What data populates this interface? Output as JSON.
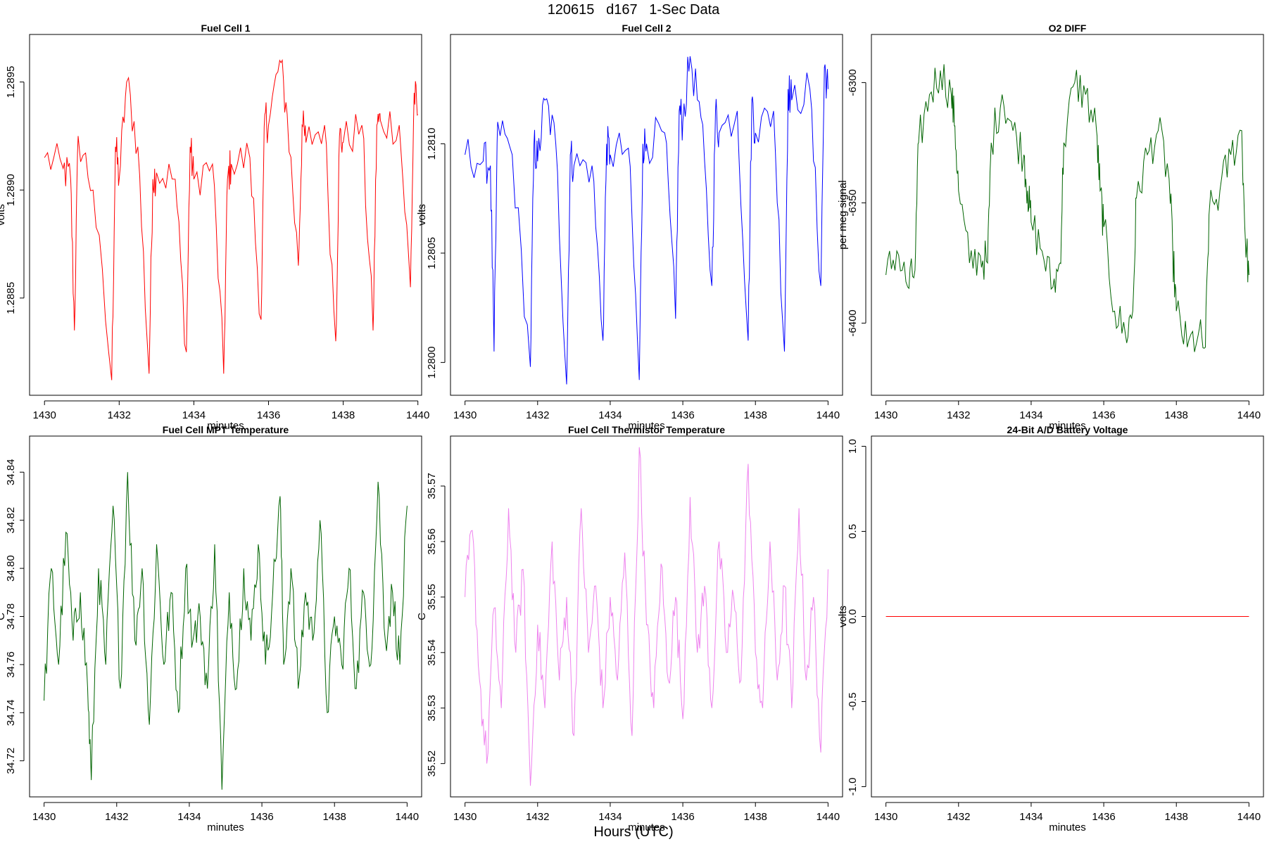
{
  "header": {
    "title": "120615   d167   1-Sec Data"
  },
  "footer": {
    "caption": "Hours (UTC)"
  },
  "chart_data": [
    {
      "type": "line",
      "title": "Fuel Cell 1",
      "xlabel": "minutes",
      "ylabel": "volts",
      "color": "#ff0000",
      "xlim": [
        1429.6,
        1440.1
      ],
      "ylim": [
        1.28805,
        1.28972
      ],
      "xticks": [
        1430,
        1432,
        1434,
        1436,
        1438,
        1440
      ],
      "yticks": [
        1.2885,
        1.289,
        1.2895
      ],
      "ytick_labels": [
        "1.2885",
        "1.2890",
        "1.2895"
      ],
      "x": [
        1430.0,
        1430.5,
        1430.7,
        1430.8,
        1430.9,
        1431.3,
        1431.8,
        1431.9,
        1432.0,
        1432.2,
        1432.5,
        1432.8,
        1432.9,
        1433.0,
        1433.5,
        1433.8,
        1433.9,
        1434.0,
        1434.5,
        1434.8,
        1434.9,
        1435.0,
        1435.5,
        1435.8,
        1435.9,
        1436.0,
        1436.3,
        1436.5,
        1436.8,
        1436.9,
        1437.0,
        1437.5,
        1437.8,
        1437.9,
        1438.0,
        1438.5,
        1438.8,
        1438.9,
        1439.0,
        1439.5,
        1439.8,
        1439.9,
        1440.0
      ],
      "y": [
        1.28915,
        1.2891,
        1.28905,
        1.28835,
        1.28925,
        1.289,
        1.28812,
        1.2892,
        1.28905,
        1.2895,
        1.2892,
        1.28815,
        1.28905,
        1.28908,
        1.28905,
        1.28825,
        1.2892,
        1.28905,
        1.28912,
        1.28815,
        1.28905,
        1.28912,
        1.28915,
        1.2884,
        1.28935,
        1.2893,
        1.2896,
        1.28935,
        1.28865,
        1.2893,
        1.28922,
        1.2893,
        1.2883,
        1.28925,
        1.28922,
        1.2893,
        1.28835,
        1.2893,
        1.28932,
        1.2893,
        1.28855,
        1.28945,
        1.28935
      ]
    },
    {
      "type": "line",
      "title": "Fuel Cell 2",
      "xlabel": "minutes",
      "ylabel": "volts",
      "color": "#0000ff",
      "xlim": [
        1429.6,
        1440.4
      ],
      "ylim": [
        1.27985,
        1.2815
      ],
      "xticks": [
        1430,
        1432,
        1434,
        1436,
        1438,
        1440
      ],
      "yticks": [
        1.28,
        1.2805,
        1.281
      ],
      "ytick_labels": [
        "1.2800",
        "1.2805",
        "1.2810"
      ],
      "x": [
        1430.0,
        1430.5,
        1430.7,
        1430.8,
        1430.9,
        1431.3,
        1431.8,
        1431.9,
        1432.0,
        1432.2,
        1432.5,
        1432.8,
        1432.9,
        1433.0,
        1433.5,
        1433.8,
        1433.9,
        1434.0,
        1434.5,
        1434.8,
        1434.9,
        1435.0,
        1435.5,
        1435.8,
        1435.9,
        1436.0,
        1436.2,
        1436.5,
        1436.8,
        1436.9,
        1437.0,
        1437.5,
        1437.8,
        1437.9,
        1438.0,
        1438.5,
        1438.8,
        1438.9,
        1439.0,
        1439.5,
        1439.8,
        1439.9,
        1440.0
      ],
      "y": [
        1.28095,
        1.28092,
        1.2809,
        1.28005,
        1.2811,
        1.28095,
        1.27998,
        1.281,
        1.28092,
        1.2812,
        1.281,
        1.2799,
        1.28095,
        1.2809,
        1.2809,
        1.2801,
        1.281,
        1.28095,
        1.28098,
        1.27992,
        1.281,
        1.281,
        1.28105,
        1.2802,
        1.28115,
        1.2811,
        1.2814,
        1.28112,
        1.28035,
        1.28115,
        1.28105,
        1.28115,
        1.2801,
        1.2812,
        1.28105,
        1.28115,
        1.28005,
        1.28125,
        1.2812,
        1.28125,
        1.28035,
        1.28135,
        1.28125
      ]
    },
    {
      "type": "line",
      "title": "O2 DIFF",
      "xlabel": "minutes",
      "ylabel": "per meg signal",
      "color": "#006400",
      "xlim": [
        1429.6,
        1440.4
      ],
      "ylim": [
        -6430,
        -6280
      ],
      "xticks": [
        1430,
        1432,
        1434,
        1436,
        1438,
        1440
      ],
      "yticks": [
        -6400,
        -6350,
        -6300
      ],
      "ytick_labels": [
        "-6400",
        "-6350",
        "-6300"
      ],
      "x": [
        1430.0,
        1430.3,
        1430.6,
        1430.8,
        1430.9,
        1431.2,
        1431.5,
        1431.8,
        1431.9,
        1432.0,
        1432.3,
        1432.6,
        1432.8,
        1432.9,
        1433.2,
        1433.5,
        1433.8,
        1433.9,
        1434.0,
        1434.3,
        1434.6,
        1434.8,
        1434.9,
        1435.2,
        1435.5,
        1435.8,
        1435.9,
        1436.0,
        1436.3,
        1436.6,
        1436.8,
        1436.9,
        1437.2,
        1437.5,
        1437.8,
        1437.9,
        1438.0,
        1438.3,
        1438.6,
        1438.8,
        1438.9,
        1439.2,
        1439.5,
        1439.8,
        1439.9,
        1440.0
      ],
      "y": [
        -6380,
        -6370,
        -6385,
        -6378,
        -6325,
        -6305,
        -6295,
        -6305,
        -6318,
        -6345,
        -6375,
        -6372,
        -6375,
        -6325,
        -6305,
        -6320,
        -6330,
        -6345,
        -6358,
        -6370,
        -6385,
        -6375,
        -6325,
        -6300,
        -6305,
        -6320,
        -6345,
        -6360,
        -6395,
        -6405,
        -6395,
        -6348,
        -6330,
        -6320,
        -6340,
        -6370,
        -6395,
        -6410,
        -6405,
        -6410,
        -6355,
        -6345,
        -6330,
        -6320,
        -6365,
        -6380
      ]
    },
    {
      "type": "line",
      "title": "Fuel Cell MPT Temperature",
      "xlabel": "minutes",
      "ylabel": "C",
      "color": "#006400",
      "xlim": [
        1429.6,
        1440.4
      ],
      "ylim": [
        34.705,
        34.855
      ],
      "xticks": [
        1430,
        1432,
        1434,
        1436,
        1438,
        1440
      ],
      "yticks": [
        34.72,
        34.74,
        34.76,
        34.78,
        34.8,
        34.82,
        34.84
      ],
      "ytick_labels": [
        "34.72",
        "34.74",
        "34.76",
        "34.78",
        "34.80",
        "34.82",
        "34.84"
      ],
      "x": [
        1430.0,
        1430.2,
        1430.4,
        1430.6,
        1430.8,
        1431.0,
        1431.2,
        1431.3,
        1431.5,
        1431.7,
        1431.9,
        1432.1,
        1432.3,
        1432.5,
        1432.7,
        1432.9,
        1433.1,
        1433.3,
        1433.5,
        1433.7,
        1433.9,
        1434.1,
        1434.3,
        1434.5,
        1434.7,
        1434.9,
        1435.1,
        1435.3,
        1435.5,
        1435.7,
        1435.9,
        1436.1,
        1436.3,
        1436.5,
        1436.6,
        1436.8,
        1437.0,
        1437.2,
        1437.4,
        1437.6,
        1437.8,
        1438.0,
        1438.2,
        1438.4,
        1438.6,
        1438.8,
        1439.0,
        1439.2,
        1439.4,
        1439.6,
        1439.8,
        1440.0
      ],
      "y": [
        34.745,
        34.8,
        34.76,
        34.815,
        34.77,
        34.79,
        34.75,
        34.712,
        34.8,
        34.76,
        34.826,
        34.75,
        34.84,
        34.77,
        34.8,
        34.735,
        34.81,
        34.76,
        34.79,
        34.74,
        34.8,
        34.77,
        34.78,
        34.75,
        34.81,
        34.708,
        34.79,
        34.75,
        34.8,
        34.77,
        34.81,
        34.76,
        34.79,
        34.83,
        34.76,
        34.8,
        34.75,
        34.79,
        34.77,
        34.82,
        34.74,
        34.78,
        34.76,
        34.8,
        34.75,
        34.79,
        34.76,
        34.836,
        34.77,
        34.79,
        34.76,
        34.826
      ]
    },
    {
      "type": "line",
      "title": "Fuel Cell Thermistor Temperature",
      "xlabel": "minutes",
      "ylabel": "C",
      "color": "#ee82ee",
      "xlim": [
        1429.6,
        1440.4
      ],
      "ylim": [
        35.514,
        35.579
      ],
      "xticks": [
        1430,
        1432,
        1434,
        1436,
        1438,
        1440
      ],
      "yticks": [
        35.52,
        35.53,
        35.54,
        35.55,
        35.56,
        35.57
      ],
      "ytick_labels": [
        "35.52",
        "35.53",
        "35.54",
        "35.55",
        "35.56",
        "35.57"
      ],
      "x": [
        1430.0,
        1430.2,
        1430.4,
        1430.6,
        1430.8,
        1431.0,
        1431.2,
        1431.4,
        1431.6,
        1431.8,
        1432.0,
        1432.2,
        1432.4,
        1432.6,
        1432.8,
        1433.0,
        1433.2,
        1433.4,
        1433.6,
        1433.8,
        1434.0,
        1434.2,
        1434.4,
        1434.6,
        1434.8,
        1435.0,
        1435.2,
        1435.4,
        1435.6,
        1435.8,
        1436.0,
        1436.2,
        1436.4,
        1436.6,
        1436.8,
        1437.0,
        1437.2,
        1437.4,
        1437.6,
        1437.8,
        1438.0,
        1438.2,
        1438.4,
        1438.6,
        1438.8,
        1439.0,
        1439.2,
        1439.4,
        1439.6,
        1439.8,
        1440.0
      ],
      "y": [
        35.55,
        35.562,
        35.535,
        35.52,
        35.548,
        35.53,
        35.566,
        35.54,
        35.555,
        35.516,
        35.545,
        35.53,
        35.56,
        35.535,
        35.55,
        35.525,
        35.566,
        35.54,
        35.552,
        35.53,
        35.55,
        35.535,
        35.558,
        35.525,
        35.577,
        35.545,
        35.53,
        35.556,
        35.535,
        35.55,
        35.528,
        35.568,
        35.54,
        35.552,
        35.53,
        35.56,
        35.54,
        35.55,
        35.535,
        35.574,
        35.54,
        35.53,
        35.56,
        35.535,
        35.552,
        35.53,
        35.566,
        35.535,
        35.55,
        35.522,
        35.555
      ]
    },
    {
      "type": "line",
      "title": "24-Bit A/D Battery Voltage",
      "xlabel": "minutes",
      "ylabel": "volts",
      "color": "#ff0000",
      "xlim": [
        1429.6,
        1440.4
      ],
      "ylim": [
        -1.06,
        1.06
      ],
      "xticks": [
        1430,
        1432,
        1434,
        1436,
        1438,
        1440
      ],
      "yticks": [
        -1.0,
        -0.5,
        0.0,
        0.5,
        1.0
      ],
      "ytick_labels": [
        "-1.0",
        "-0.5",
        "0.0",
        "0.5",
        "1.0"
      ],
      "x": [
        1430,
        1440
      ],
      "y": [
        0,
        0
      ]
    }
  ]
}
